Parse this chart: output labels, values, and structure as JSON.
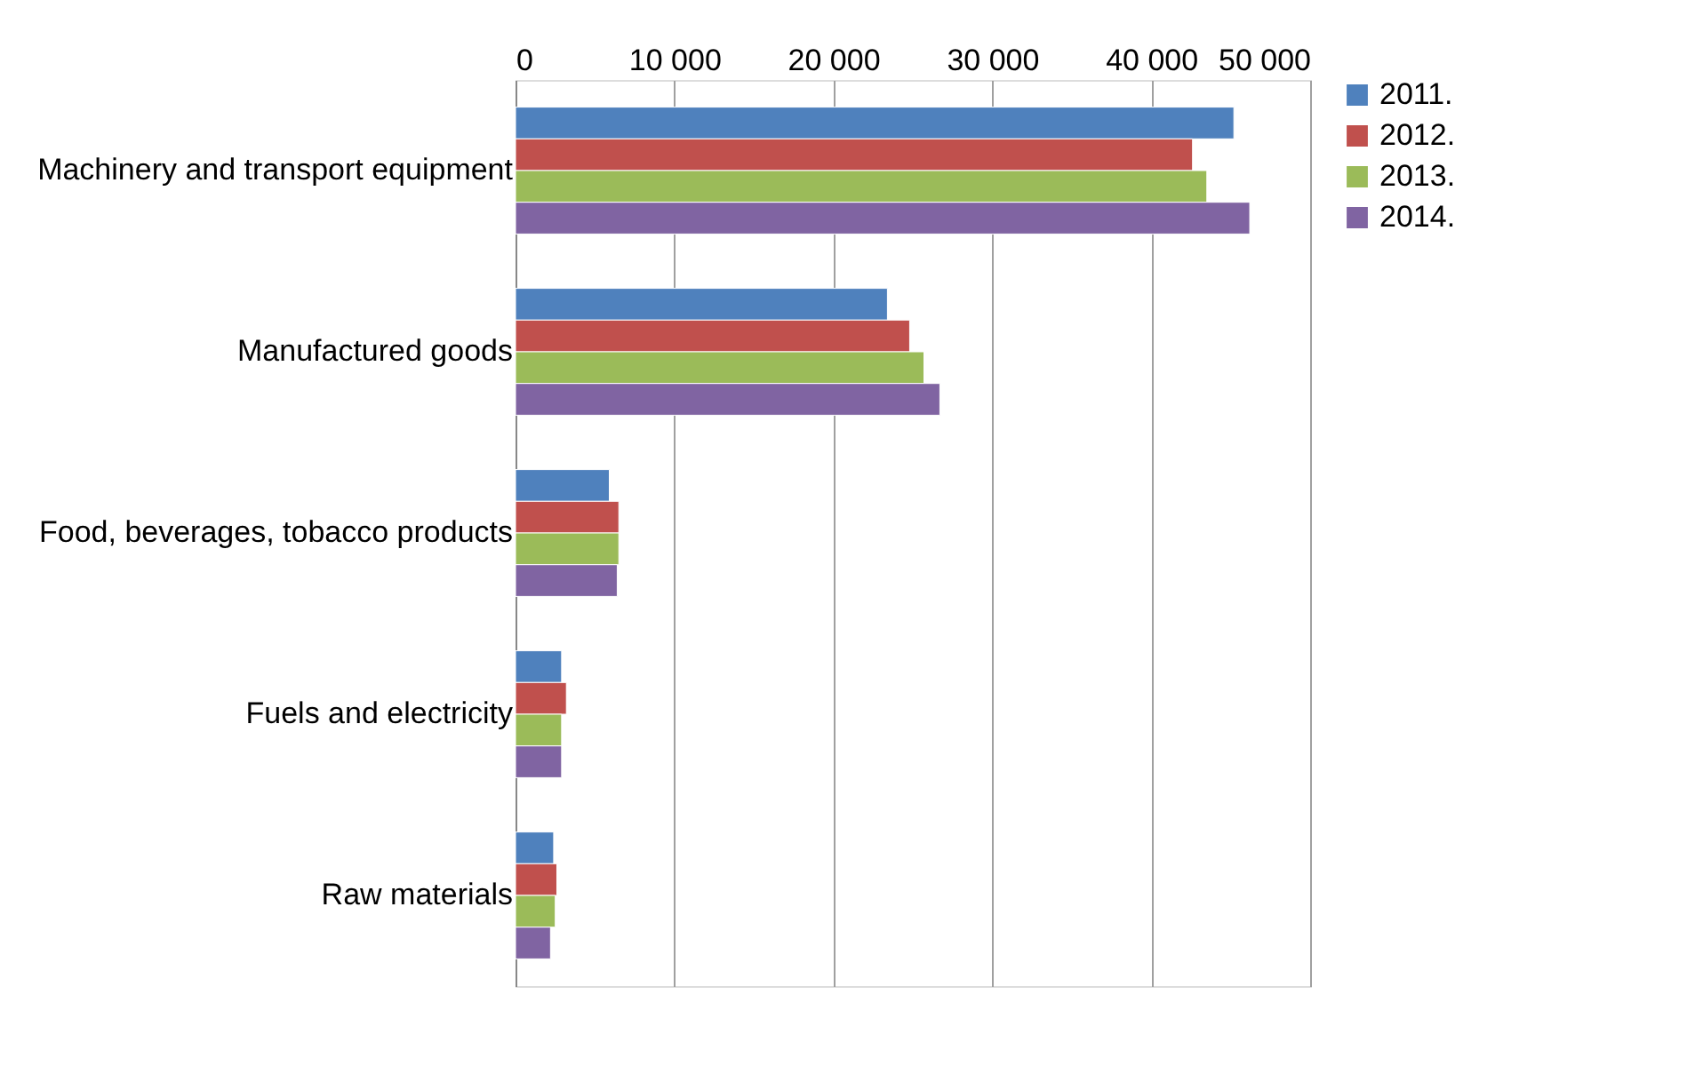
{
  "chart_data": {
    "type": "bar",
    "orientation": "horizontal",
    "categories": [
      "Machinery and transport equipment",
      "Manufactured goods",
      "Food, beverages, tobacco products",
      "Fuels and electricity",
      "Raw materials"
    ],
    "series": [
      {
        "name": "2011.",
        "color": "#4f81bd",
        "values": [
          45200,
          23400,
          5900,
          2900,
          2400
        ]
      },
      {
        "name": "2012.",
        "color": "#c0504d",
        "values": [
          42600,
          24800,
          6500,
          3200,
          2600
        ]
      },
      {
        "name": "2013.",
        "color": "#9bbb59",
        "values": [
          43500,
          25700,
          6500,
          2900,
          2500
        ]
      },
      {
        "name": "2014.",
        "color": "#8064a2",
        "values": [
          46200,
          26700,
          6400,
          2900,
          2200
        ]
      }
    ],
    "xlim": [
      0,
      50000
    ],
    "xticks": [
      0,
      {
        "value": 10000,
        "label": "10 000"
      },
      {
        "value": 20000,
        "label": "20 000"
      },
      {
        "value": 30000,
        "label": "30 000"
      },
      {
        "value": 40000,
        "label": "40 000"
      },
      {
        "value": 50000,
        "label": "50 000"
      }
    ],
    "grid": "x",
    "legend": "right"
  }
}
